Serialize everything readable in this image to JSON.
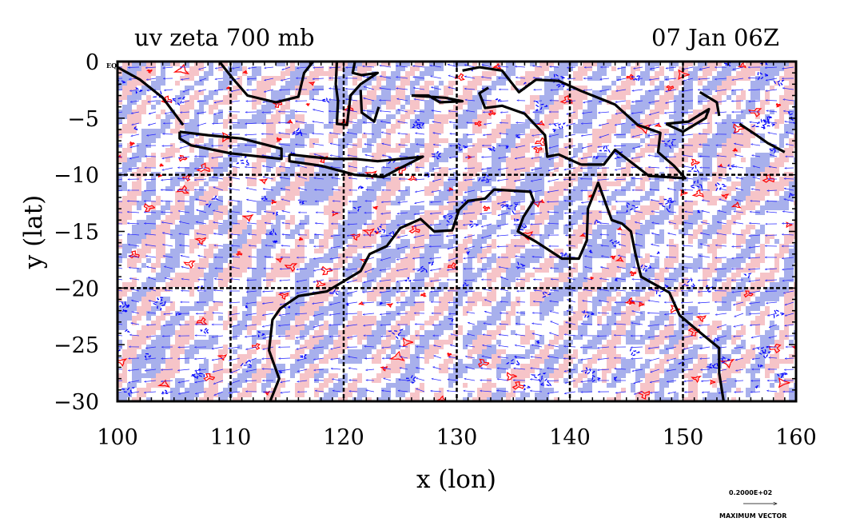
{
  "figure": {
    "title_left": "uv zeta 700 mb",
    "title_right": "07 Jan 06Z",
    "corner_label": "EQ"
  },
  "chart_data": {
    "type": "map",
    "xlabel": "x (lon)",
    "ylabel": "y (lat)",
    "xlim": [
      100,
      160
    ],
    "ylim": [
      -30,
      0
    ],
    "xticks": [
      100,
      110,
      120,
      130,
      140,
      150,
      160
    ],
    "xtick_labels": [
      "100",
      "110",
      "120",
      "130",
      "140",
      "150",
      "160"
    ],
    "yticks": [
      0,
      -5,
      -10,
      -15,
      -20,
      -25,
      -30
    ],
    "ytick_labels": [
      "0",
      "−5",
      "−10",
      "−15",
      "−20",
      "−25",
      "−30"
    ],
    "grid_x": [
      110,
      120,
      130,
      140,
      150
    ],
    "grid_y": [
      -10,
      -20
    ],
    "fields": [
      {
        "name": "zeta",
        "positive_color": "#ff0000",
        "positive_fill": "#f6c4c8",
        "negative_color": "#0000ff",
        "negative_fill": "#a8b0ec"
      },
      {
        "name": "uv",
        "arrow_color": "#2222ff"
      }
    ],
    "coastlines": [
      {
        "name": "sumatra",
        "lonlat": [
          [
            100,
            -0.5
          ],
          [
            102,
            -1.6
          ],
          [
            104,
            -3.2
          ],
          [
            105.8,
            -5.6
          ]
        ]
      },
      {
        "name": "java",
        "lonlat": [
          [
            105.5,
            -6.2
          ],
          [
            108,
            -6.5
          ],
          [
            111,
            -6.8
          ],
          [
            114.5,
            -7.7
          ],
          [
            114.5,
            -8.6
          ],
          [
            110,
            -8.1
          ],
          [
            106.5,
            -7.4
          ],
          [
            105.5,
            -6.8
          ],
          [
            105.5,
            -6.2
          ]
        ]
      },
      {
        "name": "nusa-tenggara",
        "lonlat": [
          [
            115.2,
            -8.2
          ],
          [
            117,
            -8.4
          ],
          [
            119,
            -8.6
          ],
          [
            121,
            -8.6
          ],
          [
            123,
            -8.8
          ],
          [
            127,
            -8.4
          ],
          [
            125,
            -9.4
          ],
          [
            123.5,
            -10.2
          ],
          [
            121,
            -10
          ],
          [
            118,
            -9.2
          ],
          [
            115.2,
            -8.8
          ],
          [
            115.2,
            -8.2
          ]
        ]
      },
      {
        "name": "borneo",
        "lonlat": [
          [
            109,
            0
          ],
          [
            110.2,
            -1.5
          ],
          [
            111.5,
            -3
          ],
          [
            114,
            -3.6
          ],
          [
            116,
            -3.1
          ],
          [
            116.5,
            -1
          ],
          [
            117.3,
            0
          ]
        ]
      },
      {
        "name": "sulawesi",
        "lonlat": [
          [
            119.4,
            0
          ],
          [
            119.3,
            -2
          ],
          [
            119.5,
            -3.5
          ],
          [
            119.4,
            -5.5
          ],
          [
            120.3,
            -5.6
          ],
          [
            120.6,
            -3
          ],
          [
            121.5,
            -2
          ],
          [
            123,
            -1
          ],
          [
            121.6,
            -1.2
          ],
          [
            120.8,
            -1
          ],
          [
            121,
            0
          ]
        ]
      },
      {
        "name": "sulawesi-se-arm",
        "lonlat": [
          [
            121.5,
            -2.5
          ],
          [
            121.6,
            -4.5
          ],
          [
            122.7,
            -5.3
          ],
          [
            123.1,
            -4
          ]
        ]
      },
      {
        "name": "maluku",
        "lonlat": [
          [
            126,
            -3
          ],
          [
            127.5,
            -3
          ],
          [
            128.5,
            -3.6
          ],
          [
            130.5,
            -3.5
          ],
          [
            129,
            -3.2
          ],
          [
            126,
            -3
          ]
        ]
      },
      {
        "name": "new-guinea-north",
        "lonlat": [
          [
            130.5,
            -0.8
          ],
          [
            132,
            -0.5
          ],
          [
            134,
            -0.8
          ],
          [
            135.5,
            -2.7
          ],
          [
            137,
            -1.6
          ],
          [
            139,
            -1.7
          ],
          [
            141,
            -2.6
          ],
          [
            144,
            -3.8
          ],
          [
            146,
            -5.6
          ],
          [
            148,
            -6.3
          ],
          [
            147.8,
            -8
          ],
          [
            149.2,
            -9.2
          ],
          [
            150.2,
            -10.3
          ],
          [
            147,
            -10.1
          ],
          [
            144,
            -7.8
          ],
          [
            143,
            -9.1
          ],
          [
            141,
            -9.1
          ]
        ]
      },
      {
        "name": "new-guinea-south",
        "lonlat": [
          [
            141,
            -9.1
          ],
          [
            139,
            -8.2
          ],
          [
            138,
            -8.4
          ],
          [
            137.8,
            -6.5
          ],
          [
            136,
            -4.6
          ],
          [
            134,
            -3.9
          ],
          [
            132.5,
            -4.1
          ],
          [
            132,
            -2.8
          ],
          [
            132.8,
            -2.3
          ]
        ]
      },
      {
        "name": "new-britain",
        "lonlat": [
          [
            148.5,
            -5.5
          ],
          [
            150.5,
            -5.3
          ],
          [
            152.3,
            -4.2
          ],
          [
            152,
            -5
          ],
          [
            150,
            -6.2
          ],
          [
            148.5,
            -5.5
          ]
        ]
      },
      {
        "name": "new-ireland",
        "lonlat": [
          [
            151.5,
            -2.7
          ],
          [
            153,
            -3.6
          ],
          [
            153.2,
            -4.8
          ]
        ]
      },
      {
        "name": "solomons",
        "lonlat": [
          [
            155,
            -5.5
          ],
          [
            156.5,
            -6.5
          ],
          [
            157.5,
            -7.2
          ],
          [
            159,
            -8
          ]
        ]
      },
      {
        "name": "australia",
        "lonlat": [
          [
            113.5,
            -30
          ],
          [
            114.3,
            -28
          ],
          [
            113.4,
            -25.5
          ],
          [
            113.7,
            -22.8
          ],
          [
            114.4,
            -21.8
          ],
          [
            116,
            -20.7
          ],
          [
            118.5,
            -20.3
          ],
          [
            121.5,
            -18.5
          ],
          [
            122.3,
            -17
          ],
          [
            123.8,
            -16.3
          ],
          [
            125,
            -14.7
          ],
          [
            126.8,
            -13.9
          ],
          [
            128,
            -15
          ],
          [
            129.6,
            -14.9
          ],
          [
            130.2,
            -13.1
          ],
          [
            131,
            -12.3
          ],
          [
            132.5,
            -12.1
          ],
          [
            133.3,
            -11.3
          ],
          [
            136.5,
            -11.5
          ],
          [
            136.8,
            -12.3
          ],
          [
            135.9,
            -13.7
          ],
          [
            135.4,
            -15
          ],
          [
            137,
            -15.9
          ],
          [
            139.3,
            -17.4
          ],
          [
            140.8,
            -17.4
          ],
          [
            141.5,
            -15.8
          ],
          [
            141.6,
            -13
          ],
          [
            142.5,
            -10.7
          ],
          [
            143.7,
            -14
          ],
          [
            144.6,
            -14.3
          ],
          [
            145.4,
            -15
          ],
          [
            145.8,
            -17
          ],
          [
            146.3,
            -19
          ],
          [
            148.8,
            -20.4
          ],
          [
            149.7,
            -22.4
          ],
          [
            151,
            -23.5
          ],
          [
            153.2,
            -25.3
          ],
          [
            153.2,
            -27.5
          ],
          [
            153.6,
            -30
          ]
        ]
      }
    ]
  },
  "legend": {
    "value_label": "0.2000E+02",
    "vector_label": "MAXIMUM VECTOR"
  }
}
